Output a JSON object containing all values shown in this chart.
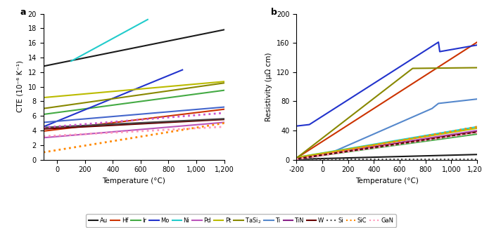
{
  "panel_a": {
    "xlabel": "Temperature (°C)",
    "ylabel": "CTE (10⁻⁶ K⁻¹)",
    "xlim": [
      -100,
      1200
    ],
    "ylim": [
      0,
      20
    ],
    "xticks": [
      0,
      200,
      400,
      600,
      800,
      1000,
      1200
    ],
    "yticks": [
      0,
      2,
      4,
      6,
      8,
      10,
      12,
      14,
      16,
      18,
      20
    ],
    "series": [
      {
        "name": "Au",
        "x": [
          -100,
          1200
        ],
        "y": [
          12.8,
          17.8
        ],
        "color": "#1a1a1a",
        "ls": "solid",
        "lw": 1.5
      },
      {
        "name": "Hf",
        "x": [
          -100,
          1200
        ],
        "y": [
          3.9,
          6.9
        ],
        "color": "#cc3300",
        "ls": "solid",
        "lw": 1.5
      },
      {
        "name": "Ir",
        "x": [
          -100,
          1200
        ],
        "y": [
          6.2,
          9.5
        ],
        "color": "#44aa44",
        "ls": "solid",
        "lw": 1.5
      },
      {
        "name": "Mo",
        "x": [
          -100,
          900
        ],
        "y": [
          4.5,
          12.3
        ],
        "color": "#2233cc",
        "ls": "solid",
        "lw": 1.5
      },
      {
        "name": "Ni",
        "x": [
          100,
          650
        ],
        "y": [
          13.5,
          19.2
        ],
        "color": "#22cccc",
        "ls": "solid",
        "lw": 1.5
      },
      {
        "name": "Pd",
        "x": [
          -100,
          1200
        ],
        "y": [
          3.0,
          5.1
        ],
        "color": "#bb55bb",
        "ls": "solid",
        "lw": 1.5
      },
      {
        "name": "Pt",
        "x": [
          -100,
          1200
        ],
        "y": [
          8.5,
          10.7
        ],
        "color": "#bbbb00",
        "ls": "solid",
        "lw": 1.5
      },
      {
        "name": "TaSi2",
        "x": [
          -100,
          1200
        ],
        "y": [
          7.0,
          10.5
        ],
        "color": "#888800",
        "ls": "solid",
        "lw": 1.5
      },
      {
        "name": "Ti",
        "x": [
          -100,
          1200
        ],
        "y": [
          5.1,
          7.2
        ],
        "color": "#4466cc",
        "ls": "solid",
        "lw": 1.5
      },
      {
        "name": "TiN",
        "x": [
          -100,
          1200
        ],
        "y": [
          4.2,
          5.5
        ],
        "color": "#660000",
        "ls": "solid",
        "lw": 1.5
      },
      {
        "name": "W",
        "x": [
          -100,
          1200
        ],
        "y": [
          4.4,
          5.6
        ],
        "color": "#444444",
        "ls": "solid",
        "lw": 1.5
      },
      {
        "name": "Si",
        "x": [
          -100,
          1200
        ],
        "y": [
          1.0,
          5.0
        ],
        "color": "#ff8800",
        "ls": "dotted",
        "lw": 2.0
      },
      {
        "name": "SiC",
        "x": [
          -100,
          1200
        ],
        "y": [
          4.4,
          6.4
        ],
        "color": "#cc55cc",
        "ls": "dotted",
        "lw": 2.0
      },
      {
        "name": "GaN",
        "x": [
          -100,
          1200
        ],
        "y": [
          3.2,
          4.5
        ],
        "color": "#ff99bb",
        "ls": "dotted",
        "lw": 2.0
      }
    ]
  },
  "panel_b": {
    "xlabel": "Temperature (°C)",
    "ylabel": "Resistivity (μΩ cm)",
    "xlim": [
      -200,
      1200
    ],
    "ylim": [
      0,
      200
    ],
    "xticks": [
      -200,
      0,
      200,
      400,
      600,
      800,
      1000,
      1200
    ],
    "yticks": [
      0,
      40,
      80,
      120,
      160,
      200
    ],
    "series": [
      {
        "name": "Au",
        "x": [
          -200,
          1200
        ],
        "y": [
          0.5,
          7.0
        ],
        "color": "#1a1a1a",
        "ls": "solid",
        "lw": 1.5
      },
      {
        "name": "Hf",
        "x": [
          -200,
          1200
        ],
        "y": [
          2.0,
          161.0
        ],
        "color": "#cc3300",
        "ls": "solid",
        "lw": 1.5
      },
      {
        "name": "Ir",
        "x": [
          -200,
          1200
        ],
        "y": [
          1.0,
          35.0
        ],
        "color": "#44aa44",
        "ls": "solid",
        "lw": 1.5
      },
      {
        "name": "Mo",
        "x": [
          -200,
          50,
          850,
          900,
          1200
        ],
        "y": [
          0.5,
          8.0,
          70.0,
          77.0,
          83.0
        ],
        "color": "#5588cc",
        "ls": "solid",
        "lw": 1.5
      },
      {
        "name": "Ni",
        "x": [
          -200,
          1200
        ],
        "y": [
          3.0,
          45.0
        ],
        "color": "#22cccc",
        "ls": "solid",
        "lw": 1.5
      },
      {
        "name": "Pd",
        "x": [
          -200,
          1200
        ],
        "y": [
          2.0,
          40.0
        ],
        "color": "#bb55bb",
        "ls": "solid",
        "lw": 1.5
      },
      {
        "name": "Pt",
        "x": [
          -200,
          1200
        ],
        "y": [
          3.0,
          43.0
        ],
        "color": "#bbbb00",
        "ls": "solid",
        "lw": 1.5
      },
      {
        "name": "TaSi2",
        "x": [
          -200,
          700,
          1200
        ],
        "y": [
          2.0,
          125.0,
          126.0
        ],
        "color": "#888800",
        "ls": "solid",
        "lw": 1.5
      },
      {
        "name": "Ti",
        "x": [
          -200,
          -100,
          900,
          910,
          1200
        ],
        "y": [
          46.0,
          48.0,
          161.0,
          148.0,
          157.0
        ],
        "color": "#2233cc",
        "ls": "solid",
        "lw": 1.5
      },
      {
        "name": "TiN",
        "x": [
          -200,
          1200
        ],
        "y": [
          1.0,
          38.0
        ],
        "color": "#882288",
        "ls": "solid",
        "lw": 1.5
      },
      {
        "name": "W",
        "x": [
          -200,
          1200
        ],
        "y": [
          1.0,
          38.0
        ],
        "color": "#660000",
        "ls": "solid",
        "lw": 1.5
      },
      {
        "name": "Si",
        "x": [
          -200,
          1200
        ],
        "y": [
          0.2,
          0.2
        ],
        "color": "#555555",
        "ls": "dotted",
        "lw": 1.5
      },
      {
        "name": "SiC",
        "x": [
          -200,
          1200
        ],
        "y": [
          0.5,
          45.0
        ],
        "color": "#ff8800",
        "ls": "dotted",
        "lw": 2.0
      },
      {
        "name": "GaN",
        "x": [
          -200,
          1200
        ],
        "y": [
          0.5,
          37.0
        ],
        "color": "#ff99bb",
        "ls": "dotted",
        "lw": 2.0
      }
    ]
  },
  "legend_entries": [
    {
      "label": "Au",
      "color": "#1a1a1a",
      "ls": "solid"
    },
    {
      "label": "Hf",
      "color": "#cc3300",
      "ls": "solid"
    },
    {
      "label": "Ir",
      "color": "#44aa44",
      "ls": "solid"
    },
    {
      "label": "Mo",
      "color": "#2233cc",
      "ls": "solid"
    },
    {
      "label": "Ni",
      "color": "#22cccc",
      "ls": "solid"
    },
    {
      "label": "Pd",
      "color": "#bb55bb",
      "ls": "solid"
    },
    {
      "label": "Pt",
      "color": "#bbbb00",
      "ls": "solid"
    },
    {
      "label": "TaSi$_2$",
      "color": "#888800",
      "ls": "solid"
    },
    {
      "label": "Ti",
      "color": "#5588cc",
      "ls": "solid"
    },
    {
      "label": "TiN",
      "color": "#882288",
      "ls": "solid"
    },
    {
      "label": "W",
      "color": "#660000",
      "ls": "solid"
    },
    {
      "label": "Si",
      "color": "#555555",
      "ls": "dotted"
    },
    {
      "label": "SiC",
      "color": "#ff8800",
      "ls": "dotted"
    },
    {
      "label": "GaN",
      "color": "#ff99bb",
      "ls": "dotted"
    }
  ]
}
